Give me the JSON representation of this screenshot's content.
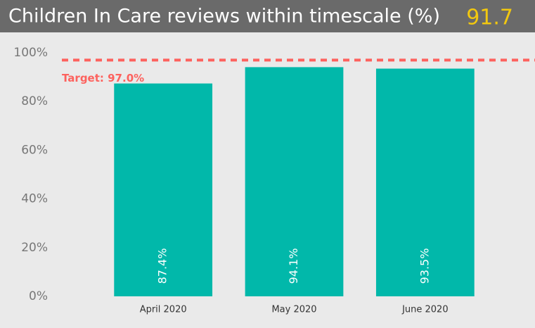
{
  "chart_data": {
    "type": "bar",
    "title": "Children In Care reviews within timescale (%)",
    "kpi": 91.7,
    "categories": [
      "April 2020",
      "May 2020",
      "June 2020"
    ],
    "values": [
      87.4,
      94.1,
      93.5
    ],
    "value_labels": [
      "87.4%",
      "94.1%",
      "93.5%"
    ],
    "color": "#01b8aa",
    "ylim": [
      0,
      100
    ],
    "yticks": [
      {
        "value": 0,
        "label": "0%"
      },
      {
        "value": 20,
        "label": "20%"
      },
      {
        "value": 40,
        "label": "40%"
      },
      {
        "value": 60,
        "label": "60%"
      },
      {
        "value": 80,
        "label": "80%"
      },
      {
        "value": 100,
        "label": "100%"
      }
    ],
    "target": {
      "value": 97,
      "label": "Target: 97.0%",
      "color": "#fd625e"
    }
  }
}
